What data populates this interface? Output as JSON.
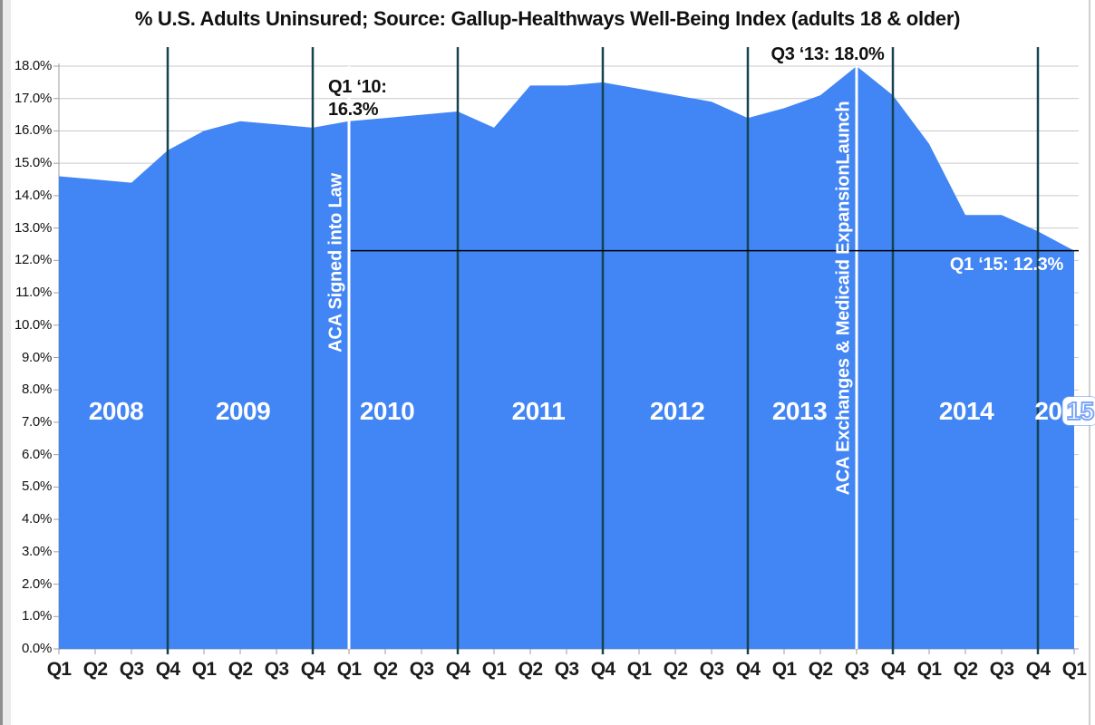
{
  "title": "% U.S. Adults Uninsured; Source: Gallup-Healthways Well-Being Index (adults 18 & older)",
  "chart_data": {
    "type": "area",
    "title": "% U.S. Adults Uninsured; Source: Gallup-Healthways Well-Being Index (adults 18 & older)",
    "xlabel": "",
    "ylabel": "",
    "ylim": [
      0,
      18
    ],
    "y_tick_step": 1,
    "grid": true,
    "legend": "none",
    "y_tick_labels": [
      "0.0%",
      "1.0%",
      "2.0%",
      "3.0%",
      "4.0%",
      "5.0%",
      "6.0%",
      "7.0%",
      "8.0%",
      "9.0%",
      "10.0%",
      "11.0%",
      "12.0%",
      "13.0%",
      "14.0%",
      "15.0%",
      "16.0%",
      "17.0%",
      "18.0%"
    ],
    "categories": [
      "Q1 2008",
      "Q2 2008",
      "Q3 2008",
      "Q4 2008",
      "Q1 2009",
      "Q2 2009",
      "Q3 2009",
      "Q4 2009",
      "Q1 2010",
      "Q2 2010",
      "Q3 2010",
      "Q4 2010",
      "Q1 2011",
      "Q2 2011",
      "Q3 2011",
      "Q4 2011",
      "Q1 2012",
      "Q2 2012",
      "Q3 2012",
      "Q4 2012",
      "Q1 2013",
      "Q2 2013",
      "Q3 2013",
      "Q4 2013",
      "Q1 2014",
      "Q2 2014",
      "Q3 2014",
      "Q4 2014",
      "Q1 2015"
    ],
    "x_tick_labels": [
      "Q1",
      "Q2",
      "Q3",
      "Q4",
      "Q1",
      "Q2",
      "Q3",
      "Q4",
      "Q1",
      "Q2",
      "Q3",
      "Q4",
      "Q1",
      "Q2",
      "Q3",
      "Q4",
      "Q1",
      "Q2",
      "Q3",
      "Q4",
      "Q1",
      "Q2",
      "Q3",
      "Q4",
      "Q1",
      "Q2",
      "Q3",
      "Q4",
      "Q1"
    ],
    "year_band_labels": [
      "2008",
      "2009",
      "2010",
      "2011",
      "2012",
      "2013",
      "2014",
      "2015"
    ],
    "series": [
      {
        "name": "% U.S. Adults Uninsured",
        "values": [
          14.6,
          14.5,
          14.4,
          15.4,
          16.0,
          16.3,
          16.2,
          16.1,
          16.3,
          16.4,
          16.5,
          16.6,
          16.1,
          17.4,
          17.4,
          17.5,
          17.3,
          17.1,
          16.9,
          16.4,
          16.7,
          17.1,
          18.0,
          17.1,
          15.6,
          13.4,
          13.4,
          12.9,
          12.3
        ]
      }
    ],
    "annotations": [
      {
        "quarter": "Q1 2010",
        "value_label": "16.3%",
        "text": "Q1 ‘10:\n16.3%"
      },
      {
        "quarter": "Q3 2013",
        "value_label": "18.0%",
        "text": "Q3 ‘13: 18.0%"
      },
      {
        "quarter": "Q1 2015",
        "value_label": "12.3%",
        "text": "Q1 ‘15: 12.3%"
      }
    ],
    "event_lines": [
      {
        "at": "Q1 2010",
        "label": "ACA Signed into Law"
      },
      {
        "at": "Q3 2013",
        "label": "ACA Exchanges & Medicaid ExpansionLaunch"
      }
    ],
    "reference_line": {
      "value": 12.3,
      "from": "Q1 2010",
      "to": "Q1 2015"
    },
    "colors": {
      "area": "#4285f4",
      "year_divider": "#174350",
      "event_line": "#ffffff",
      "gridline": "#c9c9c9",
      "axis": "#9e9e9e",
      "reference_line": "#000000",
      "title_text": "#111111",
      "tick_text": "#1c1c1c",
      "annotation_dark": "#111111",
      "annotation_light": "#ffffff",
      "year_label_text": "#ffffff"
    }
  }
}
